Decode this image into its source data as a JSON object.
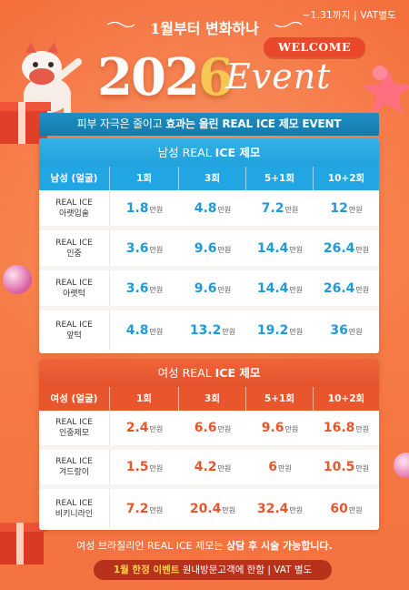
{
  "header": {
    "period": "~1.31까지  |  VAT별도",
    "hero_line": "1월부터 변화하나",
    "welcome": "WELCOME",
    "year_part1": "202",
    "year_part2": "6",
    "event_word": "Event"
  },
  "banner": {
    "prefix": "피부 자극은 줄이고 ",
    "emphasis": "효과는 올린 REAL ICE 제모 EVENT"
  },
  "male_table": {
    "title_prefix": "남성 REAL ",
    "title_bold": "ICE 제모",
    "headers": [
      "남성 (얼굴)",
      "1회",
      "3회",
      "5+1회",
      "10+2회"
    ],
    "unit": "만원",
    "rows": [
      {
        "name1": "REAL ICE",
        "name2": "아랫입술",
        "prices": [
          "1.8",
          "4.8",
          "7.2",
          "12"
        ]
      },
      {
        "name1": "REAL ICE",
        "name2": "인중",
        "prices": [
          "3.6",
          "9.6",
          "14.4",
          "26.4"
        ]
      },
      {
        "name1": "REAL ICE",
        "name2": "아랫턱",
        "prices": [
          "3.6",
          "9.6",
          "14.4",
          "26.4"
        ]
      },
      {
        "name1": "REAL ICE",
        "name2": "앞턱",
        "prices": [
          "4.8",
          "13.2",
          "19.2",
          "36"
        ]
      }
    ]
  },
  "female_table": {
    "title_prefix": "여성 REAL ",
    "title_bold": "ICE 제모",
    "headers": [
      "여성 (얼굴)",
      "1회",
      "3회",
      "5+1회",
      "10+2회"
    ],
    "unit": "만원",
    "rows": [
      {
        "name1": "REAL ICE",
        "name2": "인중제모",
        "prices": [
          "2.4",
          "6.6",
          "9.6",
          "16.8"
        ]
      },
      {
        "name1": "REAL ICE",
        "name2": "겨드랑이",
        "prices": [
          "1.5",
          "4.2",
          "6",
          "10.5"
        ]
      },
      {
        "name1": "REAL ICE",
        "name2": "비키니라인",
        "prices": [
          "7.2",
          "20.4",
          "32.4",
          "60"
        ]
      }
    ]
  },
  "footer": {
    "notice_prefix": "여성 브라질리언 REAL ICE 제모는 ",
    "notice_bold": "상담 후 시술 가능합니다.",
    "pill_highlight": "1월 한정 이벤트",
    "pill_rest": " 원내방문고객에 한함 | VAT 별도"
  },
  "colors": {
    "background": "#f46f3c",
    "male_accent": "#22a6e3",
    "female_accent": "#e9552d",
    "banner": "#157aab"
  }
}
